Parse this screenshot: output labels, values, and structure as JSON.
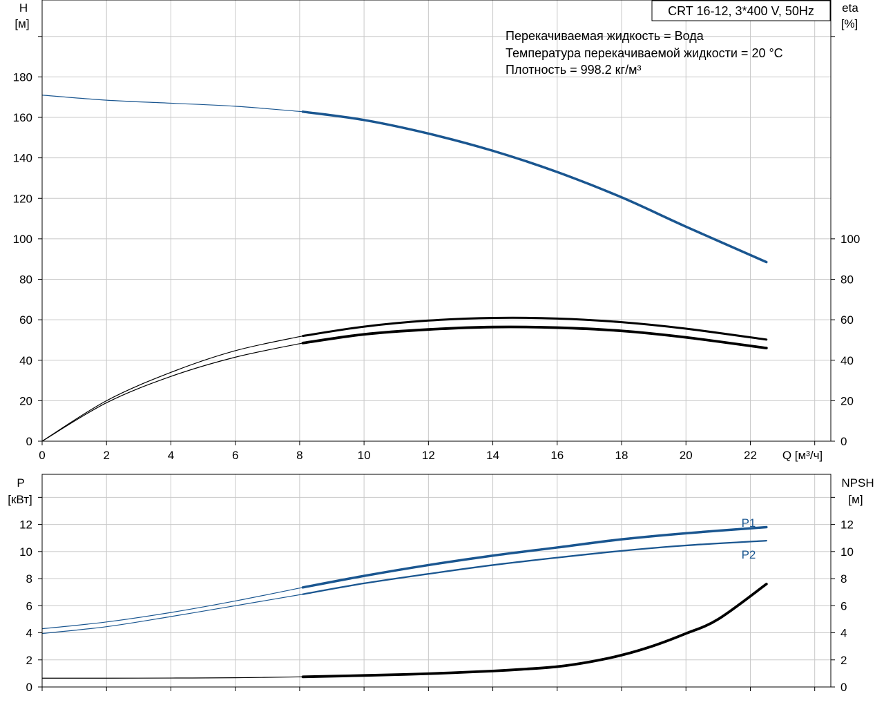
{
  "title": "CRT 16-12, 3*400 V, 50Hz",
  "info_lines": [
    "Перекачиваемая жидкость = Вода",
    "Температура перекачиваемой жидкости = 20 °C",
    "Плотность = 998.2 кг/м³"
  ],
  "colors": {
    "blue": "#1a5690",
    "black": "#000000",
    "grid": "#c8c8c8"
  },
  "chart_data": [
    {
      "type": "line",
      "name": "performance",
      "x_axis": {
        "label": "Q [м³/ч]",
        "ticks": [
          0,
          2,
          4,
          6,
          8,
          10,
          12,
          14,
          16,
          18,
          20,
          22
        ],
        "range": [
          0,
          24.5
        ]
      },
      "y_left": {
        "label_top": "H",
        "label_unit": "[м]",
        "ticks": [
          0,
          20,
          40,
          60,
          80,
          100,
          120,
          140,
          160,
          180
        ],
        "range": [
          0,
          218
        ]
      },
      "y_right": {
        "label_top": "eta",
        "label_unit": "[%]",
        "ticks": [
          0,
          20,
          40,
          60,
          80,
          100
        ],
        "range": [
          0,
          218
        ]
      },
      "grid": true,
      "series": [
        {
          "key": "H",
          "color": "#1a5690",
          "x": [
            0,
            2,
            4,
            6,
            8.1,
            10,
            12,
            14,
            16,
            18,
            20,
            22.5
          ],
          "y": [
            171,
            168.5,
            167,
            165.5,
            162.8,
            158.7,
            152,
            143.5,
            133,
            120.5,
            106,
            88.5
          ]
        },
        {
          "key": "eta_upper",
          "color": "#000000",
          "x": [
            0,
            2,
            4,
            6,
            8.1,
            10,
            12,
            14,
            16,
            18,
            20,
            22.5
          ],
          "y": [
            0,
            20,
            34,
            44.7,
            52,
            56.6,
            59.6,
            60.9,
            60.6,
            58.8,
            55.6,
            50.2
          ]
        },
        {
          "key": "eta_lower",
          "color": "#000000",
          "x": [
            0,
            2,
            4,
            6,
            8.1,
            10,
            12,
            14,
            16,
            18,
            20,
            22.5
          ],
          "y": [
            0,
            19,
            32,
            41.5,
            48.5,
            52.8,
            55.2,
            56.4,
            56.1,
            54.5,
            51.3,
            46
          ]
        }
      ]
    },
    {
      "type": "line",
      "name": "power-npsh",
      "x_axis": {
        "ticks": [
          0,
          2,
          4,
          6,
          8,
          10,
          12,
          14,
          16,
          18,
          20,
          22
        ],
        "range": [
          0,
          24.5
        ]
      },
      "y_left": {
        "label_top": "P",
        "label_unit": "[кВт]",
        "ticks": [
          0,
          2,
          4,
          6,
          8,
          10,
          12
        ],
        "range": [
          0,
          15.7
        ]
      },
      "y_right": {
        "label_top": "NPSH",
        "label_unit": "[м]",
        "ticks": [
          0,
          2,
          4,
          6,
          8,
          10,
          12
        ],
        "range": [
          0,
          15.7
        ]
      },
      "grid": true,
      "series": [
        {
          "name": "P1",
          "key": "P1",
          "color": "#1a5690",
          "x": [
            0,
            2,
            4,
            6,
            8.1,
            10,
            12,
            14,
            16,
            18,
            20,
            22.5
          ],
          "y": [
            4.3,
            4.8,
            5.5,
            6.35,
            7.35,
            8.2,
            9.0,
            9.7,
            10.3,
            10.9,
            11.35,
            11.8
          ]
        },
        {
          "name": "P2",
          "key": "P2",
          "color": "#1a5690",
          "x": [
            0,
            2,
            4,
            6,
            8.1,
            10,
            12,
            14,
            16,
            18,
            20,
            22.5
          ],
          "y": [
            3.95,
            4.45,
            5.2,
            6.0,
            6.85,
            7.65,
            8.35,
            9.0,
            9.55,
            10.05,
            10.45,
            10.8
          ]
        },
        {
          "key": "NPSH",
          "color": "#000000",
          "x": [
            0,
            2,
            4,
            6,
            8.1,
            10,
            12,
            14,
            15,
            16,
            17,
            18,
            19,
            20,
            21,
            22.5
          ],
          "y": [
            0.65,
            0.65,
            0.66,
            0.68,
            0.75,
            0.85,
            0.98,
            1.18,
            1.32,
            1.5,
            1.85,
            2.35,
            3.05,
            3.95,
            5.0,
            7.6
          ]
        }
      ]
    }
  ]
}
